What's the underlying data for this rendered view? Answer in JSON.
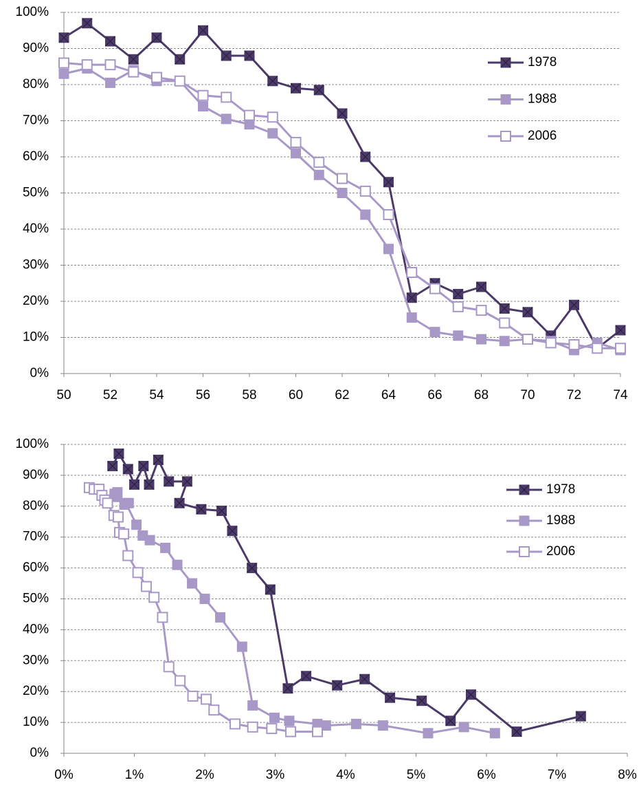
{
  "chart_data": [
    {
      "type": "line",
      "grid": true,
      "legend": "right",
      "x": [
        50,
        51,
        52,
        53,
        54,
        55,
        56,
        57,
        58,
        59,
        60,
        61,
        62,
        63,
        64,
        65,
        66,
        67,
        68,
        69,
        70,
        71,
        72,
        73,
        74
      ],
      "xlim": [
        50,
        74
      ],
      "xticks": [
        50,
        52,
        54,
        56,
        58,
        60,
        62,
        64,
        66,
        68,
        70,
        72,
        74
      ],
      "ylim": [
        0,
        100
      ],
      "yticks": [
        {
          "value": 0,
          "label": "0%"
        },
        {
          "value": 10,
          "label": "10%"
        },
        {
          "value": 20,
          "label": "20%"
        },
        {
          "value": 30,
          "label": "30%"
        },
        {
          "value": 40,
          "label": "40%"
        },
        {
          "value": 50,
          "label": "50%"
        },
        {
          "value": 60,
          "label": "60%"
        },
        {
          "value": 70,
          "label": "70%"
        },
        {
          "value": 80,
          "label": "80%"
        },
        {
          "value": 90,
          "label": "90%"
        },
        {
          "value": 100,
          "label": "100%"
        }
      ],
      "series": [
        {
          "name": "1978",
          "color": "#4b3a69",
          "marker": "x-square",
          "values": [
            93,
            97,
            92,
            87,
            93,
            87,
            95,
            88,
            88,
            81,
            79,
            78.5,
            72,
            60,
            53,
            21,
            25,
            22,
            24,
            18,
            17,
            10.5,
            19,
            7,
            12
          ]
        },
        {
          "name": "1988",
          "color": "#a898c8",
          "marker": "square",
          "values": [
            83,
            84.5,
            80.5,
            84,
            81,
            81,
            74,
            70.5,
            69,
            66.5,
            61,
            55,
            50,
            44,
            34.5,
            15.5,
            11.5,
            10.5,
            9.5,
            9,
            9.5,
            9,
            6.5,
            8.5,
            6.5
          ]
        },
        {
          "name": "2006",
          "color": "#a898c8",
          "marker": "open-square",
          "values": [
            86,
            85.5,
            85.5,
            83.5,
            82,
            81,
            77,
            76.5,
            71.5,
            71,
            64,
            58.5,
            54,
            50.5,
            44,
            28,
            23.5,
            18.5,
            17.5,
            14,
            9.5,
            8.5,
            8,
            7,
            7
          ]
        }
      ]
    },
    {
      "type": "line",
      "grid": true,
      "legend": "right",
      "xlim": [
        0,
        8
      ],
      "xticks": [
        {
          "value": 0,
          "label": "0%"
        },
        {
          "value": 1,
          "label": "1%"
        },
        {
          "value": 2,
          "label": "2%"
        },
        {
          "value": 3,
          "label": "3%"
        },
        {
          "value": 4,
          "label": "4%"
        },
        {
          "value": 5,
          "label": "5%"
        },
        {
          "value": 6,
          "label": "6%"
        },
        {
          "value": 7,
          "label": "7%"
        },
        {
          "value": 8,
          "label": "8%"
        }
      ],
      "ylim": [
        0,
        100
      ],
      "yticks": [
        {
          "value": 0,
          "label": "0%"
        },
        {
          "value": 10,
          "label": "10%"
        },
        {
          "value": 20,
          "label": "20%"
        },
        {
          "value": 30,
          "label": "30%"
        },
        {
          "value": 40,
          "label": "40%"
        },
        {
          "value": 50,
          "label": "50%"
        },
        {
          "value": 60,
          "label": "60%"
        },
        {
          "value": 70,
          "label": "70%"
        },
        {
          "value": 80,
          "label": "80%"
        },
        {
          "value": 90,
          "label": "90%"
        },
        {
          "value": 100,
          "label": "100%"
        }
      ],
      "series": [
        {
          "name": "1978",
          "color": "#4b3a69",
          "marker": "x-square",
          "x": [
            0.69,
            0.78,
            0.91,
            1.0,
            1.13,
            1.21,
            1.34,
            1.49,
            1.75,
            1.64,
            1.95,
            2.24,
            2.39,
            2.67,
            2.93,
            3.18,
            3.44,
            3.88,
            4.27,
            4.63,
            5.08,
            5.49,
            5.78,
            6.43,
            7.34
          ],
          "values": [
            93,
            97,
            92,
            87,
            93,
            87,
            95,
            88,
            88,
            81,
            79,
            78.5,
            72,
            60,
            53,
            21,
            25,
            22,
            24,
            18,
            17,
            10.5,
            19,
            7,
            12
          ]
        },
        {
          "name": "1988",
          "color": "#a898c8",
          "marker": "square",
          "x": [
            0.72,
            0.76,
            0.86,
            0.72,
            0.92,
            0.88,
            1.03,
            1.12,
            1.22,
            1.44,
            1.61,
            1.82,
            2.0,
            2.22,
            2.53,
            2.68,
            2.99,
            3.2,
            3.6,
            3.72,
            4.15,
            4.53,
            5.17,
            5.68,
            6.12
          ],
          "values": [
            83,
            84.5,
            80.5,
            84,
            81,
            81,
            74,
            70.5,
            69,
            66.5,
            61,
            55,
            50,
            44,
            34.5,
            15.5,
            11.5,
            10.5,
            9.5,
            9,
            9.5,
            9,
            6.5,
            8.5,
            6.5
          ]
        },
        {
          "name": "2006",
          "color": "#a898c8",
          "marker": "open-square",
          "x": [
            0.36,
            0.43,
            0.5,
            0.54,
            0.58,
            0.62,
            0.71,
            0.77,
            0.79,
            0.85,
            0.91,
            1.05,
            1.17,
            1.28,
            1.4,
            1.49,
            1.65,
            1.83,
            2.02,
            2.13,
            2.43,
            2.68,
            2.95,
            3.22,
            3.6
          ],
          "values": [
            86,
            85.5,
            85.5,
            83.5,
            82,
            81,
            77,
            76.5,
            71.5,
            71,
            64,
            58.5,
            54,
            50.5,
            44,
            28,
            23.5,
            18.5,
            17.5,
            14,
            9.5,
            8.5,
            8,
            7,
            7
          ]
        }
      ]
    }
  ]
}
